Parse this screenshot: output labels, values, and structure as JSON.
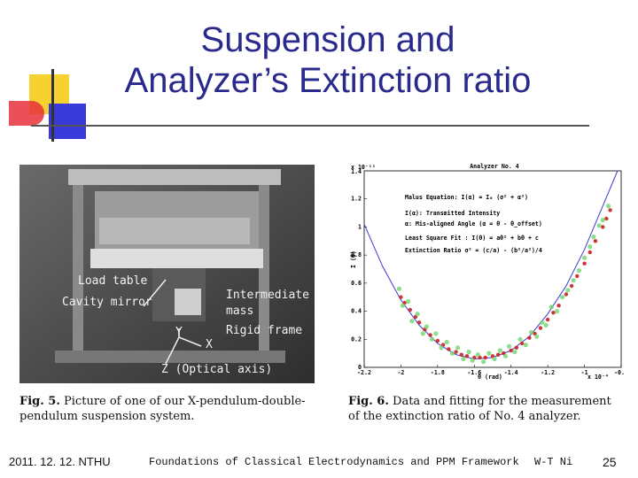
{
  "slide": {
    "title_line1": "Suspension and",
    "title_line2": "Analyzer’s Extinction ratio",
    "colors": {
      "title": "#2a2a8c",
      "deco_yellow": "#f5d230",
      "deco_red": "#e8303a",
      "deco_blue": "#3a3ad8"
    }
  },
  "photo": {
    "labels": {
      "load_table": "Load table",
      "cavity_mirror": "Cavity mirror",
      "intermediate": "Intermediate",
      "mass": "mass",
      "rigid_frame": "Rigid frame",
      "axis_y": "Y",
      "axis_x": "X",
      "axis_z": "Z (Optical axis)"
    }
  },
  "plot": {
    "title": "Analyzer No. 4",
    "y_scale": "x 10⁻¹¹",
    "x_scale": "x 10⁻⁴",
    "ylabel": "I (θ)",
    "xlabel": "θ (rad)",
    "annotations": {
      "malus": "Malus Equation: I(α) = I₀ (σ² + α²)",
      "transmitted": "I(α): Transmitted Intensity",
      "misaligned": "α: Mis-aligned Angle (α = θ - θ_offset)",
      "least_square": "Least Square Fit : I(θ) = aθ² + bθ + c",
      "extinction": "Extinction Ratio σ² = (c/a) - (b²/a²)/4"
    }
  },
  "chart_data": {
    "type": "scatter",
    "title": "Analyzer No. 4",
    "xlabel": "θ (rad)",
    "ylabel": "I (θ)",
    "xlim": [
      -2.2,
      -0.8
    ],
    "ylim": [
      0,
      1.4
    ],
    "x_ticks": [
      "-2.2",
      "-2",
      "-1.8",
      "-1.6",
      "-1.4",
      "-1.2",
      "-1",
      "-0.8"
    ],
    "y_ticks": [
      "0",
      "0.2",
      "0.4",
      "0.6",
      "0.8",
      "1",
      "1.2"
    ],
    "y_tick_top": "1.4",
    "series": [
      {
        "kind": "fit",
        "color": "#3a3ad8",
        "points": [
          [
            -2.2,
            1.02
          ],
          [
            -2.1,
            0.72
          ],
          [
            -2.0,
            0.48
          ],
          [
            -1.9,
            0.3
          ],
          [
            -1.8,
            0.17
          ],
          [
            -1.7,
            0.09
          ],
          [
            -1.6,
            0.06
          ],
          [
            -1.5,
            0.07
          ],
          [
            -1.4,
            0.12
          ],
          [
            -1.3,
            0.22
          ],
          [
            -1.2,
            0.38
          ],
          [
            -1.1,
            0.58
          ],
          [
            -1.0,
            0.84
          ],
          [
            -0.9,
            1.15
          ],
          [
            -0.82,
            1.4
          ]
        ]
      },
      {
        "kind": "data-fit",
        "color": "#cc1f1f",
        "points": [
          [
            -2.0,
            0.5
          ],
          [
            -1.98,
            0.46
          ],
          [
            -1.95,
            0.41
          ],
          [
            -1.92,
            0.36
          ],
          [
            -1.9,
            0.32
          ],
          [
            -1.87,
            0.27
          ],
          [
            -1.84,
            0.23
          ],
          [
            -1.8,
            0.19
          ],
          [
            -1.77,
            0.16
          ],
          [
            -1.74,
            0.13
          ],
          [
            -1.7,
            0.11
          ],
          [
            -1.67,
            0.09
          ],
          [
            -1.64,
            0.08
          ],
          [
            -1.6,
            0.07
          ],
          [
            -1.57,
            0.07
          ],
          [
            -1.54,
            0.07
          ],
          [
            -1.5,
            0.08
          ],
          [
            -1.47,
            0.09
          ],
          [
            -1.44,
            0.1
          ],
          [
            -1.4,
            0.12
          ],
          [
            -1.37,
            0.14
          ],
          [
            -1.34,
            0.17
          ],
          [
            -1.3,
            0.21
          ],
          [
            -1.27,
            0.24
          ],
          [
            -1.24,
            0.28
          ],
          [
            -1.2,
            0.34
          ],
          [
            -1.17,
            0.39
          ],
          [
            -1.14,
            0.44
          ],
          [
            -1.1,
            0.52
          ],
          [
            -1.07,
            0.58
          ],
          [
            -1.04,
            0.65
          ],
          [
            -1.0,
            0.74
          ],
          [
            -0.97,
            0.82
          ],
          [
            -0.94,
            0.9
          ],
          [
            -0.9,
            1.0
          ],
          [
            -0.88,
            1.06
          ],
          [
            -0.86,
            1.12
          ]
        ]
      },
      {
        "kind": "data",
        "color": "#6fd46f",
        "points": [
          [
            -2.01,
            0.56
          ],
          [
            -1.99,
            0.44
          ],
          [
            -1.96,
            0.47
          ],
          [
            -1.94,
            0.33
          ],
          [
            -1.91,
            0.38
          ],
          [
            -1.88,
            0.24
          ],
          [
            -1.86,
            0.29
          ],
          [
            -1.83,
            0.2
          ],
          [
            -1.81,
            0.24
          ],
          [
            -1.78,
            0.14
          ],
          [
            -1.75,
            0.18
          ],
          [
            -1.72,
            0.1
          ],
          [
            -1.69,
            0.14
          ],
          [
            -1.66,
            0.06
          ],
          [
            -1.63,
            0.11
          ],
          [
            -1.61,
            0.05
          ],
          [
            -1.58,
            0.09
          ],
          [
            -1.55,
            0.04
          ],
          [
            -1.52,
            0.1
          ],
          [
            -1.49,
            0.06
          ],
          [
            -1.46,
            0.12
          ],
          [
            -1.43,
            0.08
          ],
          [
            -1.41,
            0.15
          ],
          [
            -1.38,
            0.11
          ],
          [
            -1.35,
            0.2
          ],
          [
            -1.32,
            0.16
          ],
          [
            -1.29,
            0.25
          ],
          [
            -1.26,
            0.22
          ],
          [
            -1.23,
            0.32
          ],
          [
            -1.21,
            0.3
          ],
          [
            -1.18,
            0.43
          ],
          [
            -1.15,
            0.4
          ],
          [
            -1.12,
            0.5
          ],
          [
            -1.09,
            0.55
          ],
          [
            -1.06,
            0.62
          ],
          [
            -1.03,
            0.69
          ],
          [
            -1.0,
            0.78
          ],
          [
            -0.97,
            0.86
          ],
          [
            -0.95,
            0.93
          ],
          [
            -0.92,
            1.01
          ],
          [
            -0.9,
            1.05
          ],
          [
            -0.87,
            1.15
          ]
        ]
      }
    ]
  },
  "captions": {
    "fig5_label": "Fig. 5.",
    "fig5_text": "Picture of one of our X-pendulum-double-pendulum suspension system.",
    "fig6_label": "Fig. 6.",
    "fig6_text": "Data and fitting for the measurement of the extinction ratio of No. 4 analyzer."
  },
  "footer": {
    "date": "2011. 12. 12. NTHU",
    "course": "Foundations of Classical Electrodynamics and PPM Framework",
    "author": "W-T Ni",
    "page": "25"
  }
}
